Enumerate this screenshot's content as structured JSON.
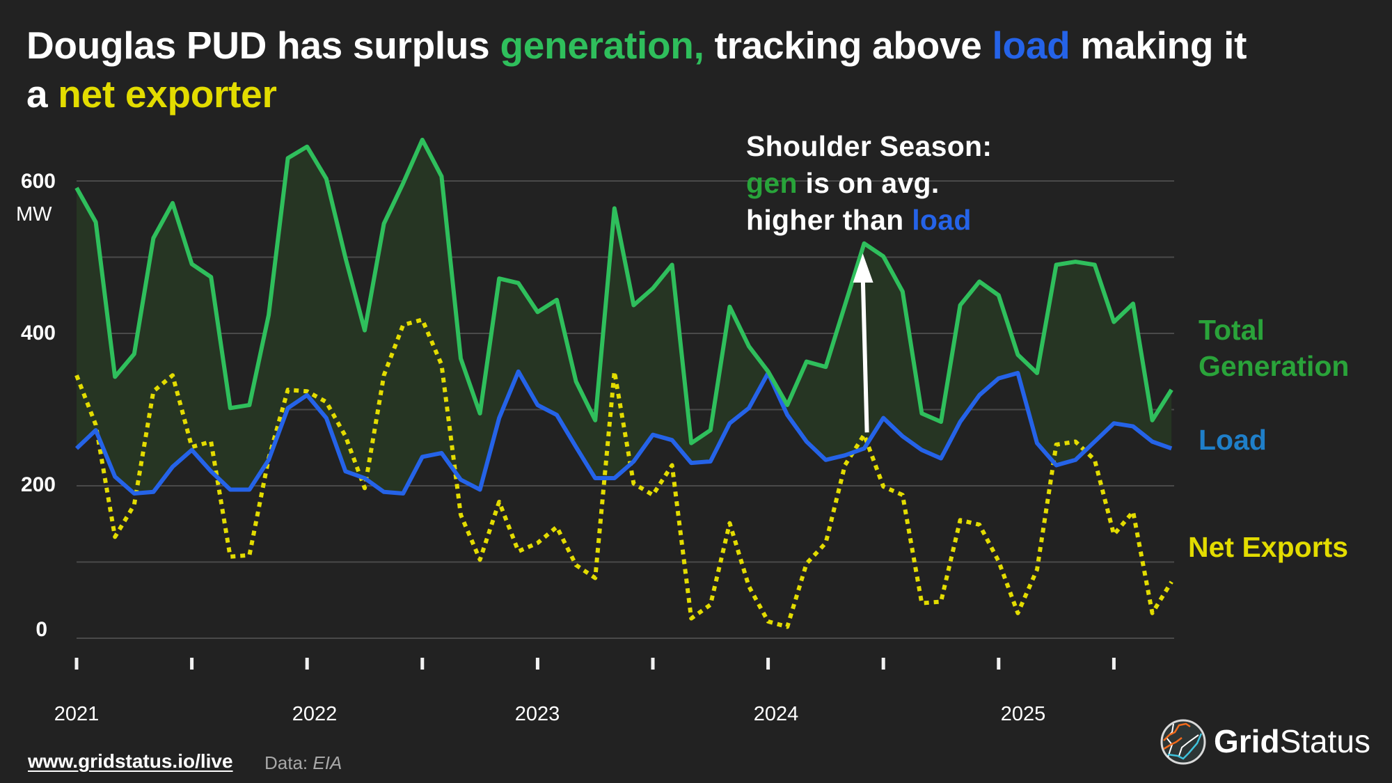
{
  "title": {
    "line1_part1": "Douglas PUD has surplus ",
    "line1_gen": "generation,",
    "line1_part2": " tracking above ",
    "line1_load": "load",
    "line1_part3": " making it",
    "line2_part1": "a ",
    "line2_net": "net exporter"
  },
  "annotation": {
    "line1": "Shoulder Season:",
    "line2_gen": "gen",
    "line2_rest": " is on avg.",
    "line3_part1": "higher than ",
    "line3_load": "load"
  },
  "legend": {
    "gen_line1": "Total",
    "gen_line2": "Generation",
    "load": "Load",
    "net": "Net Exports"
  },
  "footer": {
    "link": "www.gridstatus.io/live",
    "data_label": "Data: ",
    "data_source": "EIA"
  },
  "logo": {
    "bold": "Grid",
    "regular": "Status"
  },
  "colors": {
    "background": "#222222",
    "generation": "#2fbf5c",
    "load": "#2563e8",
    "net_exports": "#e3dc00",
    "fill": "#263523",
    "grid": "#4a4a4a",
    "legend_generation": "#2aa33a",
    "legend_load": "#1f7fc9"
  },
  "chart_data": {
    "type": "line",
    "title": "Douglas PUD has surplus generation, tracking above load making it a net exporter",
    "xlabel": "",
    "ylabel": "MW",
    "ylim": [
      0,
      600
    ],
    "yticks": [
      0,
      100,
      200,
      300,
      400,
      500,
      600
    ],
    "ytick_labels": [
      {
        "value": 600,
        "label": "600"
      },
      {
        "value": 400,
        "label": "400"
      },
      {
        "value": 200,
        "label": "200"
      },
      {
        "value": 0,
        "label": "0"
      }
    ],
    "grid": true,
    "x_start": "2021-01",
    "x_frequency": "monthly",
    "xtick_years": [
      "2021",
      "2022",
      "2023",
      "2024",
      "2025"
    ],
    "xtick_label_month_index": [
      0,
      12,
      24,
      36,
      48
    ],
    "minor_tick_month_index": [
      0,
      6,
      12,
      18,
      24,
      30,
      36,
      42,
      48,
      54
    ],
    "legend_placement": "right",
    "annotation": {
      "text": "Shoulder Season: gen is on avg. higher than load",
      "arrow_month_index": 41,
      "arrow_from": 270,
      "arrow_to": 505
    },
    "x": [
      "2021-01",
      "2021-02",
      "2021-03",
      "2021-04",
      "2021-05",
      "2021-06",
      "2021-07",
      "2021-08",
      "2021-09",
      "2021-10",
      "2021-11",
      "2021-12",
      "2022-01",
      "2022-02",
      "2022-03",
      "2022-04",
      "2022-05",
      "2022-06",
      "2022-07",
      "2022-08",
      "2022-09",
      "2022-10",
      "2022-11",
      "2022-12",
      "2023-01",
      "2023-02",
      "2023-03",
      "2023-04",
      "2023-05",
      "2023-06",
      "2023-07",
      "2023-08",
      "2023-09",
      "2023-10",
      "2023-11",
      "2023-12",
      "2024-01",
      "2024-02",
      "2024-03",
      "2024-04",
      "2024-05",
      "2024-06",
      "2024-07",
      "2024-08",
      "2024-09",
      "2024-10",
      "2024-11",
      "2024-12",
      "2025-01",
      "2025-02",
      "2025-03",
      "2025-04",
      "2025-05",
      "2025-06",
      "2025-07",
      "2025-08",
      "2025-09",
      "2025-10"
    ],
    "series": [
      {
        "name": "Total Generation",
        "style": "solid",
        "values": [
          591,
          546,
          343,
          373,
          525,
          571,
          491,
          474,
          302,
          306,
          424,
          630,
          645,
          603,
          499,
          404,
          544,
          597,
          654,
          606,
          367,
          295,
          472,
          466,
          428,
          444,
          337,
          286,
          564,
          437,
          459,
          490,
          256,
          273,
          435,
          383,
          350,
          306,
          363,
          356,
          437,
          518,
          501,
          455,
          295,
          284,
          437,
          468,
          450,
          372,
          348,
          490,
          494,
          490,
          415,
          439,
          286,
          326
        ]
      },
      {
        "name": "Load",
        "style": "solid",
        "values": [
          249,
          273,
          212,
          190,
          192,
          225,
          247,
          219,
          195,
          195,
          234,
          302,
          319,
          289,
          219,
          210,
          192,
          190,
          238,
          243,
          208,
          195,
          289,
          350,
          306,
          293,
          251,
          210,
          210,
          232,
          267,
          260,
          230,
          232,
          282,
          302,
          348,
          293,
          258,
          234,
          240,
          249,
          289,
          265,
          247,
          236,
          284,
          319,
          341,
          348,
          256,
          227,
          234,
          258,
          282,
          278,
          258,
          249
        ]
      },
      {
        "name": "Net Exports",
        "style": "dotted",
        "values": [
          345,
          280,
          133,
          175,
          324,
          345,
          251,
          258,
          107,
          109,
          236,
          326,
          324,
          310,
          265,
          197,
          345,
          411,
          418,
          359,
          162,
          103,
          179,
          114,
          125,
          146,
          96,
          79,
          350,
          203,
          188,
          227,
          26,
          44,
          151,
          68,
          22,
          15,
          98,
          125,
          227,
          267,
          199,
          188,
          46,
          48,
          155,
          149,
          101,
          33,
          90,
          254,
          258,
          234,
          136,
          166,
          33,
          74
        ]
      }
    ]
  }
}
